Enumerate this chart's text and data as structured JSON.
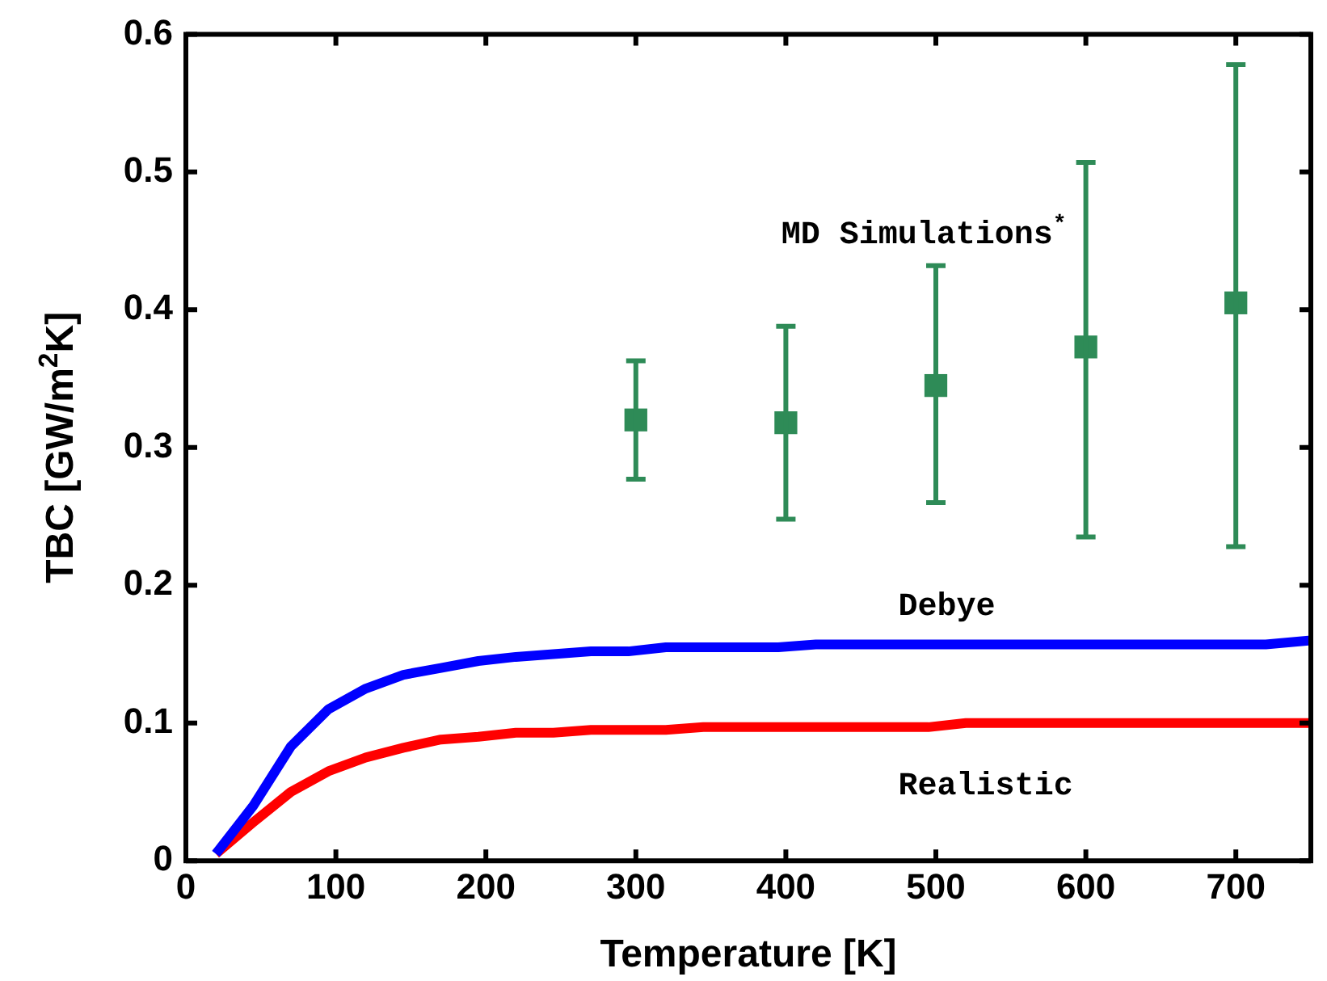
{
  "chart_data": {
    "type": "line",
    "xlabel": "Temperature [K]",
    "ylabel": "TBC [GW/m$^{2}$K]",
    "xlim": [
      0,
      750
    ],
    "xticks": [
      0,
      100,
      200,
      300,
      400,
      500,
      600,
      700
    ],
    "ylim": [
      0,
      0.6
    ],
    "yticks": [
      0,
      0.1,
      0.2,
      0.3,
      0.4,
      0.5,
      0.6
    ],
    "grid": false,
    "legend": false,
    "series": [
      {
        "name": "Debye",
        "color": "#0000ff",
        "marker": "none",
        "x": [
          20,
          45,
          70,
          95,
          120,
          145,
          170,
          195,
          220,
          270,
          295,
          320,
          395,
          420,
          720,
          750
        ],
        "values": [
          0.005,
          0.04,
          0.083,
          0.11,
          0.125,
          0.135,
          0.14,
          0.145,
          0.148,
          0.152,
          0.152,
          0.155,
          0.155,
          0.157,
          0.157,
          0.16
        ]
      },
      {
        "name": "Realistic",
        "color": "#ff0000",
        "marker": "none",
        "x": [
          20,
          45,
          70,
          95,
          120,
          145,
          170,
          195,
          220,
          245,
          270,
          320,
          345,
          495,
          520,
          750
        ],
        "values": [
          0.005,
          0.028,
          0.05,
          0.065,
          0.075,
          0.082,
          0.088,
          0.09,
          0.093,
          0.093,
          0.095,
          0.095,
          0.097,
          0.097,
          0.1,
          0.1
        ]
      },
      {
        "name": "MD Simulations$^{*}$",
        "type": "scatter",
        "color": "#2e8b57",
        "marker": "square",
        "x": [
          300,
          400,
          500,
          600,
          700
        ],
        "values": [
          0.32,
          0.318,
          0.345,
          0.373,
          0.405
        ],
        "errors": [
          [
            0.277,
            0.363
          ],
          [
            0.248,
            0.388
          ],
          [
            0.26,
            0.432
          ],
          [
            0.235,
            0.507
          ],
          [
            0.228,
            0.578
          ]
        ]
      }
    ]
  }
}
